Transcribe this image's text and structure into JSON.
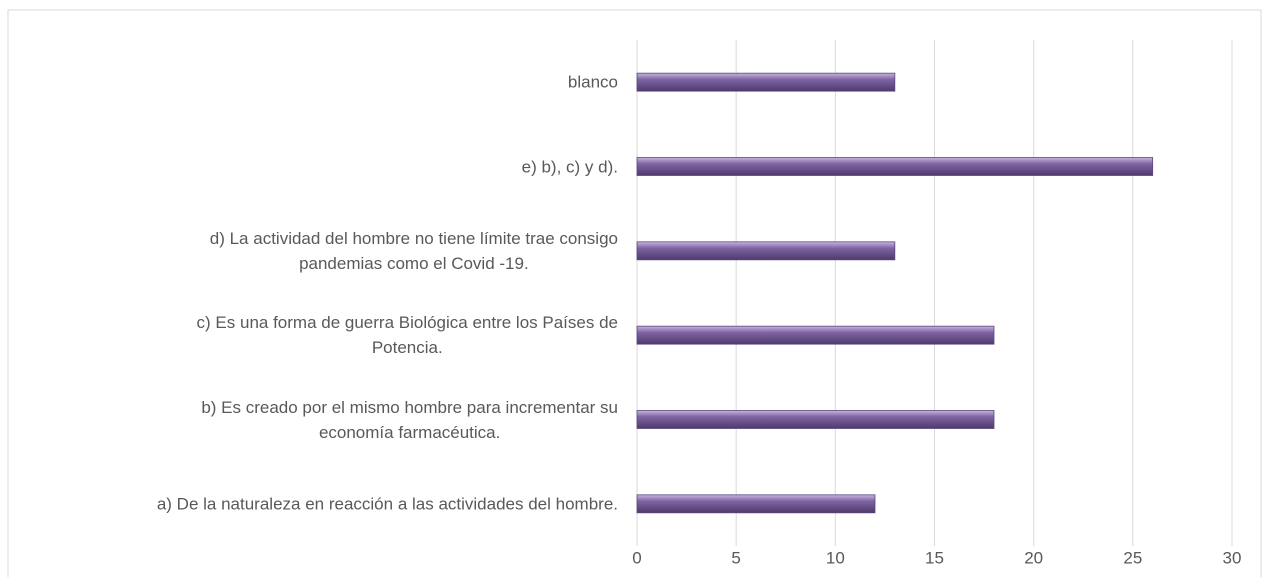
{
  "chart_data": {
    "type": "barh",
    "categories": [
      "blanco",
      "e) b), c) y d).",
      "d) La actividad del hombre no tiene límite trae consigo\npandemias como el Covid -19.",
      "c) Es una forma de guerra Biológica entre los Países de\nPotencia.",
      "b) Es creado por el mismo hombre para incrementar su\neconomía farmacéutica.",
      "a) De la naturaleza en reacción a las actividades del hombre."
    ],
    "values": [
      13,
      26,
      13,
      18,
      18,
      12
    ],
    "color": "#8064a2",
    "xlim": [
      0,
      30
    ],
    "xticks": [
      0,
      5,
      10,
      15,
      20,
      25,
      30
    ],
    "grid": true
  }
}
